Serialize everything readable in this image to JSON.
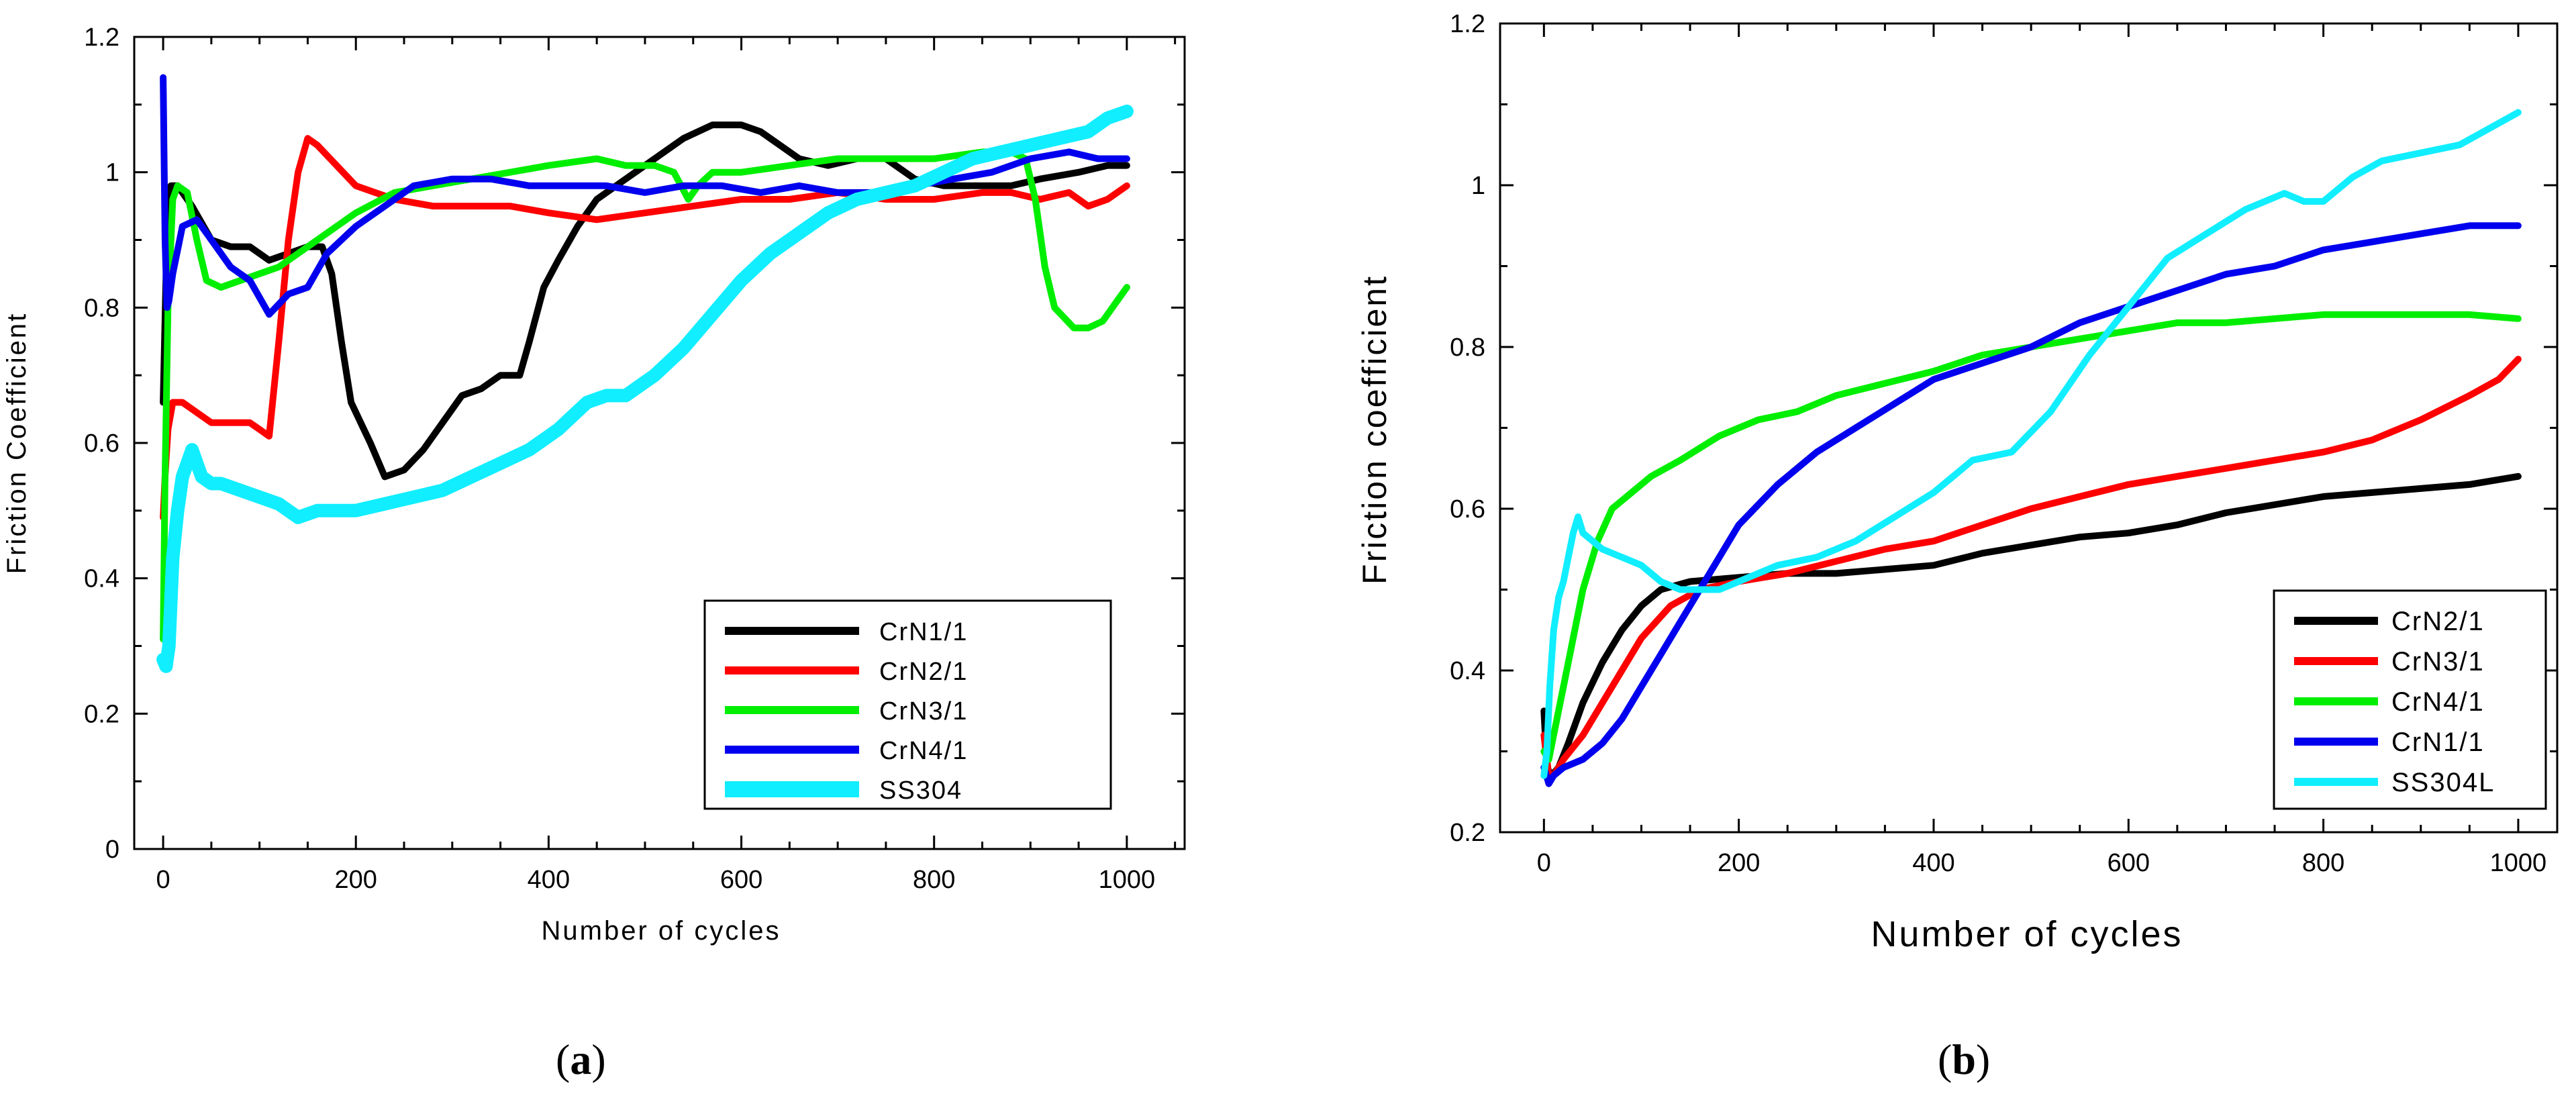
{
  "chart_data": [
    {
      "type": "line",
      "panel": "a",
      "title": "",
      "xlabel": "Number of cycles",
      "ylabel": "Friction Coefficient",
      "xlim": [
        -30,
        1060
      ],
      "ylim": [
        0,
        1.2
      ],
      "xticks": [
        0,
        200,
        400,
        600,
        800,
        1000
      ],
      "yticks": [
        0,
        0.2,
        0.4,
        0.6,
        0.8,
        1,
        1.2
      ],
      "xtick_labels": [
        "0",
        "200",
        "400",
        "600",
        "800",
        "1000"
      ],
      "ytick_labels": [
        "0",
        "0.2",
        "0.4",
        "0.6",
        "0.8",
        "1",
        "1.2"
      ],
      "grid": false,
      "legend_position": "bottom-right",
      "series": [
        {
          "name": "CrN1/1",
          "color": "#000000",
          "x": [
            0,
            3,
            8,
            15,
            30,
            50,
            70,
            90,
            110,
            130,
            150,
            165,
            175,
            185,
            195,
            205,
            215,
            230,
            250,
            270,
            290,
            310,
            330,
            350,
            370,
            380,
            395,
            410,
            430,
            450,
            480,
            510,
            540,
            570,
            600,
            620,
            640,
            660,
            690,
            720,
            750,
            780,
            810,
            850,
            880,
            910,
            950,
            980,
            1000
          ],
          "y": [
            0.66,
            0.85,
            0.98,
            0.98,
            0.95,
            0.9,
            0.89,
            0.89,
            0.87,
            0.88,
            0.89,
            0.89,
            0.85,
            0.75,
            0.66,
            0.63,
            0.6,
            0.55,
            0.56,
            0.59,
            0.63,
            0.67,
            0.68,
            0.7,
            0.7,
            0.75,
            0.83,
            0.87,
            0.92,
            0.96,
            0.99,
            1.02,
            1.05,
            1.07,
            1.07,
            1.06,
            1.04,
            1.02,
            1.01,
            1.02,
            1.02,
            0.99,
            0.98,
            0.98,
            0.98,
            0.99,
            1.0,
            1.01,
            1.01
          ]
        },
        {
          "name": "CrN2/1",
          "color": "#ff0000",
          "x": [
            0,
            2,
            5,
            10,
            20,
            30,
            50,
            70,
            90,
            100,
            110,
            120,
            130,
            140,
            150,
            160,
            180,
            200,
            240,
            280,
            320,
            360,
            400,
            450,
            500,
            550,
            600,
            650,
            700,
            750,
            800,
            850,
            880,
            910,
            940,
            960,
            980,
            1000
          ],
          "y": [
            0.49,
            0.55,
            0.62,
            0.66,
            0.66,
            0.65,
            0.63,
            0.63,
            0.63,
            0.62,
            0.61,
            0.75,
            0.9,
            1.0,
            1.05,
            1.04,
            1.01,
            0.98,
            0.96,
            0.95,
            0.95,
            0.95,
            0.94,
            0.93,
            0.94,
            0.95,
            0.96,
            0.96,
            0.97,
            0.96,
            0.96,
            0.97,
            0.97,
            0.96,
            0.97,
            0.95,
            0.96,
            0.98
          ]
        },
        {
          "name": "CrN3/1",
          "color": "#00ee00",
          "x": [
            0,
            2,
            5,
            10,
            15,
            25,
            35,
            45,
            60,
            80,
            100,
            120,
            140,
            160,
            180,
            200,
            240,
            280,
            320,
            360,
            400,
            450,
            480,
            510,
            530,
            545,
            555,
            570,
            600,
            650,
            700,
            750,
            800,
            850,
            880,
            895,
            905,
            915,
            925,
            945,
            960,
            975,
            990,
            1000
          ],
          "y": [
            0.31,
            0.55,
            0.8,
            0.96,
            0.98,
            0.97,
            0.9,
            0.84,
            0.83,
            0.84,
            0.85,
            0.86,
            0.88,
            0.9,
            0.92,
            0.94,
            0.97,
            0.98,
            0.99,
            1.0,
            1.01,
            1.02,
            1.01,
            1.01,
            1.0,
            0.96,
            0.98,
            1.0,
            1.0,
            1.01,
            1.02,
            1.02,
            1.02,
            1.03,
            1.03,
            1.02,
            0.96,
            0.86,
            0.8,
            0.77,
            0.77,
            0.78,
            0.81,
            0.83
          ]
        },
        {
          "name": "CrN4/1",
          "color": "#0000ee",
          "x": [
            0,
            2,
            4,
            6,
            10,
            20,
            35,
            50,
            70,
            90,
            110,
            130,
            150,
            170,
            200,
            230,
            260,
            300,
            340,
            380,
            420,
            460,
            500,
            540,
            580,
            620,
            660,
            700,
            740,
            780,
            820,
            860,
            900,
            940,
            970,
            1000
          ],
          "y": [
            1.14,
            0.9,
            0.8,
            0.81,
            0.85,
            0.92,
            0.93,
            0.9,
            0.86,
            0.84,
            0.79,
            0.82,
            0.83,
            0.88,
            0.92,
            0.95,
            0.98,
            0.99,
            0.99,
            0.98,
            0.98,
            0.98,
            0.97,
            0.98,
            0.98,
            0.97,
            0.98,
            0.97,
            0.97,
            0.98,
            0.99,
            1.0,
            1.02,
            1.03,
            1.02,
            1.02
          ]
        },
        {
          "name": "SS304",
          "color": "#11eeff",
          "x": [
            0,
            3,
            6,
            10,
            15,
            20,
            25,
            30,
            35,
            40,
            50,
            60,
            80,
            100,
            120,
            140,
            160,
            180,
            200,
            230,
            260,
            290,
            320,
            350,
            380,
            410,
            440,
            460,
            480,
            510,
            540,
            570,
            600,
            630,
            660,
            690,
            720,
            750,
            780,
            810,
            840,
            870,
            900,
            930,
            960,
            980,
            1000
          ],
          "y": [
            0.28,
            0.27,
            0.3,
            0.43,
            0.5,
            0.55,
            0.57,
            0.59,
            0.57,
            0.55,
            0.54,
            0.54,
            0.53,
            0.52,
            0.51,
            0.49,
            0.5,
            0.5,
            0.5,
            0.51,
            0.52,
            0.53,
            0.55,
            0.57,
            0.59,
            0.62,
            0.66,
            0.67,
            0.67,
            0.7,
            0.74,
            0.79,
            0.84,
            0.88,
            0.91,
            0.94,
            0.96,
            0.97,
            0.98,
            1.0,
            1.02,
            1.03,
            1.04,
            1.05,
            1.06,
            1.08,
            1.09
          ]
        }
      ]
    },
    {
      "type": "line",
      "panel": "b",
      "title": "",
      "xlabel": "Number of cycles",
      "ylabel": "Friction coefficient",
      "xlim": [
        -45,
        1040
      ],
      "ylim": [
        0.2,
        1.2
      ],
      "xticks": [
        0,
        200,
        400,
        600,
        800,
        1000
      ],
      "yticks": [
        0.2,
        0.4,
        0.6,
        0.8,
        1,
        1.2
      ],
      "xtick_labels": [
        "0",
        "200",
        "400",
        "600",
        "800",
        "1000"
      ],
      "ytick_labels": [
        "0.2",
        "0.4",
        "0.6",
        "0.8",
        "1",
        "1.2"
      ],
      "grid": false,
      "legend_position": "bottom-right",
      "series": [
        {
          "name": "CrN2/1",
          "color": "#000000",
          "x": [
            0,
            3,
            8,
            15,
            25,
            40,
            60,
            80,
            100,
            120,
            150,
            200,
            250,
            300,
            350,
            400,
            450,
            500,
            550,
            600,
            650,
            700,
            750,
            800,
            850,
            900,
            950,
            1000
          ],
          "y": [
            0.35,
            0.28,
            0.27,
            0.28,
            0.31,
            0.36,
            0.41,
            0.45,
            0.48,
            0.5,
            0.51,
            0.515,
            0.52,
            0.52,
            0.525,
            0.53,
            0.545,
            0.555,
            0.565,
            0.57,
            0.58,
            0.595,
            0.605,
            0.615,
            0.62,
            0.625,
            0.63,
            0.64
          ]
        },
        {
          "name": "CrN3/1",
          "color": "#ff0000",
          "x": [
            0,
            5,
            10,
            20,
            40,
            60,
            80,
            100,
            130,
            160,
            200,
            250,
            300,
            350,
            400,
            450,
            500,
            550,
            600,
            650,
            700,
            750,
            800,
            850,
            900,
            950,
            980,
            1000
          ],
          "y": [
            0.32,
            0.27,
            0.27,
            0.29,
            0.32,
            0.36,
            0.4,
            0.44,
            0.48,
            0.5,
            0.51,
            0.52,
            0.535,
            0.55,
            0.56,
            0.58,
            0.6,
            0.615,
            0.63,
            0.64,
            0.65,
            0.66,
            0.67,
            0.685,
            0.71,
            0.74,
            0.76,
            0.785
          ]
        },
        {
          "name": "CrN4/1",
          "color": "#00ee00",
          "x": [
            0,
            5,
            10,
            20,
            30,
            40,
            55,
            70,
            90,
            110,
            140,
            180,
            220,
            260,
            300,
            350,
            400,
            450,
            500,
            550,
            600,
            650,
            700,
            750,
            800,
            850,
            900,
            950,
            1000
          ],
          "y": [
            0.3,
            0.29,
            0.32,
            0.38,
            0.44,
            0.5,
            0.56,
            0.6,
            0.62,
            0.64,
            0.66,
            0.69,
            0.71,
            0.72,
            0.74,
            0.755,
            0.77,
            0.79,
            0.8,
            0.81,
            0.82,
            0.83,
            0.83,
            0.835,
            0.84,
            0.84,
            0.84,
            0.84,
            0.835
          ]
        },
        {
          "name": "CrN1/1",
          "color": "#0000ee",
          "x": [
            0,
            5,
            10,
            20,
            40,
            60,
            80,
            100,
            120,
            140,
            170,
            200,
            240,
            280,
            320,
            360,
            400,
            450,
            500,
            550,
            600,
            650,
            700,
            750,
            800,
            850,
            900,
            950,
            1000
          ],
          "y": [
            0.28,
            0.26,
            0.27,
            0.28,
            0.29,
            0.31,
            0.34,
            0.38,
            0.42,
            0.46,
            0.52,
            0.58,
            0.63,
            0.67,
            0.7,
            0.73,
            0.76,
            0.78,
            0.8,
            0.83,
            0.85,
            0.87,
            0.89,
            0.9,
            0.92,
            0.93,
            0.94,
            0.95,
            0.95
          ]
        },
        {
          "name": "SS304L",
          "color": "#11eeff",
          "x": [
            0,
            3,
            6,
            10,
            15,
            20,
            25,
            30,
            35,
            40,
            50,
            60,
            80,
            100,
            120,
            140,
            160,
            180,
            200,
            240,
            280,
            320,
            360,
            400,
            440,
            480,
            520,
            560,
            600,
            640,
            680,
            720,
            760,
            780,
            800,
            830,
            860,
            900,
            940,
            970,
            1000
          ],
          "y": [
            0.27,
            0.3,
            0.38,
            0.45,
            0.49,
            0.51,
            0.54,
            0.57,
            0.59,
            0.57,
            0.56,
            0.55,
            0.54,
            0.53,
            0.51,
            0.5,
            0.5,
            0.5,
            0.51,
            0.53,
            0.54,
            0.56,
            0.59,
            0.62,
            0.66,
            0.67,
            0.72,
            0.79,
            0.85,
            0.91,
            0.94,
            0.97,
            0.99,
            0.98,
            0.98,
            1.01,
            1.03,
            1.04,
            1.05,
            1.07,
            1.09
          ]
        }
      ]
    }
  ],
  "panels": {
    "a": {
      "label": "a"
    },
    "b": {
      "label": "b"
    }
  }
}
